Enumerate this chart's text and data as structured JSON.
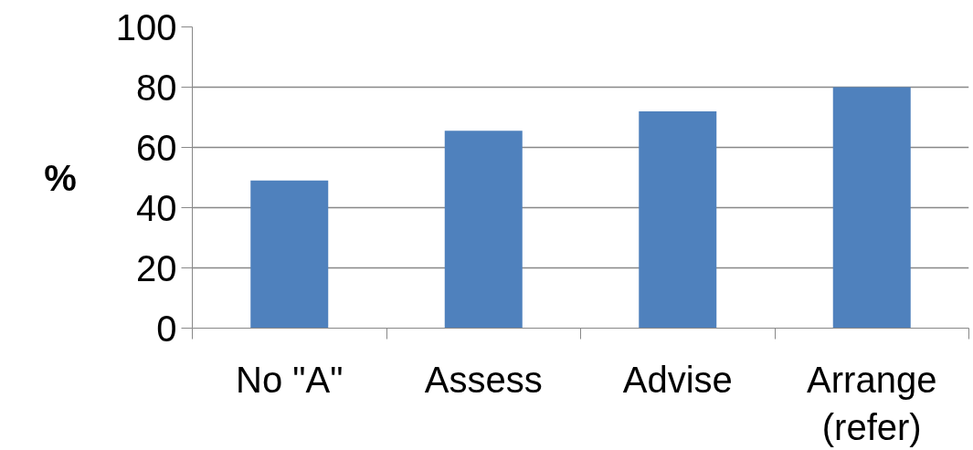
{
  "chart_data": {
    "type": "bar",
    "ylabel": "%",
    "categories": [
      "No \"A\"",
      "Assess",
      "Advise",
      "Arrange\n(refer)"
    ],
    "values": [
      49,
      65.5,
      72,
      80
    ],
    "color": "#4f81bd",
    "ylim": [
      0,
      100
    ],
    "yticks": [
      0,
      20,
      40,
      60,
      80,
      100
    ],
    "grid": "y"
  }
}
